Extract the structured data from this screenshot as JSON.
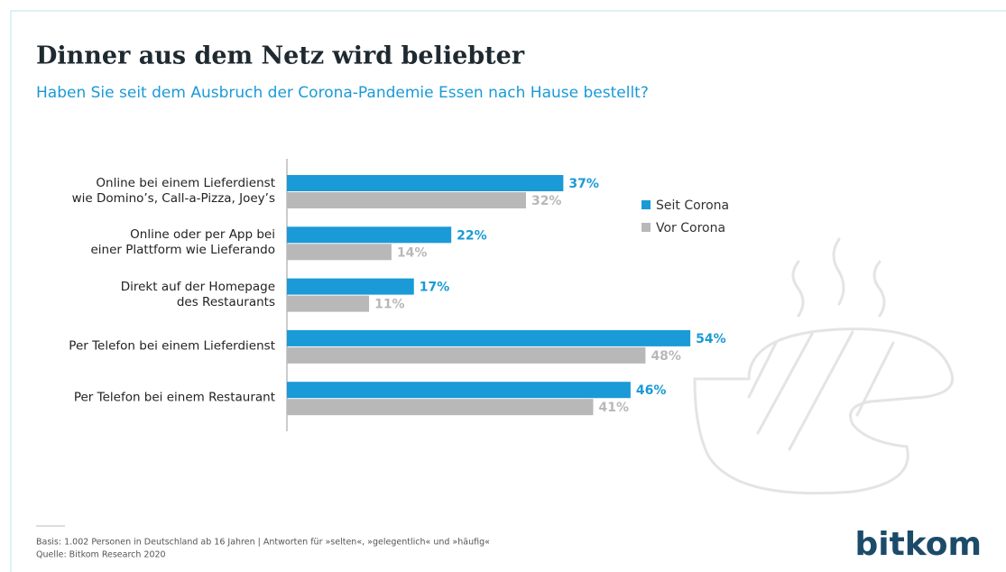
{
  "chart_data": {
    "type": "bar",
    "orientation": "horizontal",
    "title": "Dinner aus dem Netz wird beliebter",
    "subtitle": "Haben Sie seit dem Ausbruch der Corona-Pandemie Essen nach Hause bestellt?",
    "categories": [
      "Online bei einem Lieferdienst\nwie Domino’s, Call-a-Pizza, Joey’s",
      "Online oder per App bei\neiner Plattform wie Lieferando",
      "Direkt auf der Homepage\ndes Restaurants",
      "Per Telefon bei einem Lieferdienst",
      "Per Telefon bei einem Restaurant"
    ],
    "series": [
      {
        "name": "Seit Corona",
        "color": "#1a9ad6",
        "values": [
          37,
          22,
          17,
          54,
          46
        ],
        "value_labels": [
          "37%",
          "22%",
          "17%",
          "54%",
          "46%"
        ]
      },
      {
        "name": "Vor Corona",
        "color": "#b8b8b8",
        "values": [
          32,
          14,
          11,
          48,
          41
        ],
        "value_labels": [
          "32%",
          "14%",
          "11%",
          "48%",
          "41%"
        ]
      }
    ],
    "footnote": "Basis: 1.002 Personen in Deutschland ab 16 Jahren | Antworten für »selten«, »gelegentlich« und »häufig«",
    "source": "Quelle: Bitkom Research 2020",
    "logo": "bitkom"
  }
}
